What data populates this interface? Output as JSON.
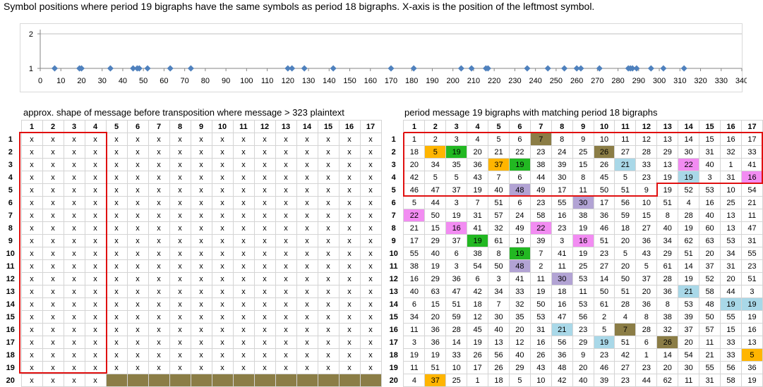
{
  "title": "Symbol positions where period 19 bigraphs have the same symbols as period 18 bigraphs. X-axis is the position of the leftmost symbol.",
  "chart_data": {
    "type": "scatter",
    "title": "",
    "xlim": [
      0,
      340
    ],
    "ylim": [
      1,
      2
    ],
    "xticks": [
      "0",
      "10",
      "20",
      "30",
      "40",
      "50",
      "60",
      "70",
      "80",
      "90",
      "100",
      "110",
      "120",
      "130",
      "140",
      "150",
      "160",
      "170",
      "180",
      "190",
      "200",
      "210",
      "220",
      "230",
      "240",
      "250",
      "260",
      "270",
      "280",
      "290",
      "300",
      "310",
      "320",
      "330",
      "340"
    ],
    "yticks": [
      "1",
      "2"
    ],
    "marker_color": "#4f81bd",
    "x": [
      7,
      19,
      20,
      34,
      45,
      47,
      48,
      52,
      63,
      73,
      120,
      122,
      128,
      142,
      170,
      181,
      204,
      209,
      216,
      217,
      236,
      246,
      254,
      260,
      262,
      271,
      285,
      286,
      287,
      289,
      296,
      302,
      312
    ],
    "y": [
      1,
      1,
      1,
      1,
      1,
      1,
      1,
      1,
      1,
      1,
      1,
      1,
      1,
      1,
      1,
      1,
      1,
      1,
      1,
      1,
      1,
      1,
      1,
      1,
      1,
      1,
      1,
      1,
      1,
      1,
      1,
      1,
      1
    ]
  },
  "left_table": {
    "caption": "approx. shape of message before transposition where message > 323 plaintext",
    "col_headers": [
      "1",
      "2",
      "3",
      "4",
      "5",
      "6",
      "7",
      "8",
      "9",
      "10",
      "11",
      "12",
      "13",
      "14",
      "15",
      "16",
      "17"
    ],
    "row_headers": [
      "1",
      "2",
      "3",
      "4",
      "5",
      "6",
      "7",
      "8",
      "9",
      "10",
      "11",
      "12",
      "13",
      "14",
      "15",
      "16",
      "17",
      "18",
      "19",
      "20"
    ],
    "cell_symbol": "x",
    "last_row_filled_cols": 4,
    "empty_fill_color": "#8b7d46"
  },
  "right_table": {
    "caption": "period message 19 bigraphs with matching period 18 bigraphs",
    "col_headers": [
      "1",
      "2",
      "3",
      "4",
      "5",
      "6",
      "7",
      "8",
      "9",
      "10",
      "11",
      "12",
      "13",
      "14",
      "15",
      "16",
      "17"
    ],
    "row_headers": [
      "1",
      "2",
      "3",
      "4",
      "5",
      "6",
      "7",
      "8",
      "9",
      "10",
      "11",
      "12",
      "13",
      "14",
      "15",
      "16",
      "17",
      "18",
      "19",
      "20"
    ],
    "rows": [
      [
        "1",
        "2",
        "3",
        "4",
        "5",
        "6",
        "7",
        "8",
        "9",
        "10",
        "11",
        "12",
        "13",
        "14",
        "15",
        "16",
        "17"
      ],
      [
        "18",
        "5",
        "19",
        "20",
        "21",
        "22",
        "23",
        "24",
        "25",
        "26",
        "27",
        "28",
        "29",
        "30",
        "31",
        "32",
        "33"
      ],
      [
        "20",
        "34",
        "35",
        "36",
        "37",
        "19",
        "38",
        "39",
        "15",
        "26",
        "21",
        "33",
        "13",
        "22",
        "40",
        "1",
        "41"
      ],
      [
        "42",
        "5",
        "5",
        "43",
        "7",
        "6",
        "44",
        "30",
        "8",
        "45",
        "5",
        "23",
        "19",
        "19",
        "3",
        "31",
        "16"
      ],
      [
        "46",
        "47",
        "37",
        "19",
        "40",
        "48",
        "49",
        "17",
        "11",
        "50",
        "51",
        "9",
        "19",
        "52",
        "53",
        "10",
        "54"
      ],
      [
        "5",
        "44",
        "3",
        "7",
        "51",
        "6",
        "23",
        "55",
        "30",
        "17",
        "56",
        "10",
        "51",
        "4",
        "16",
        "25",
        "21"
      ],
      [
        "22",
        "50",
        "19",
        "31",
        "57",
        "24",
        "58",
        "16",
        "38",
        "36",
        "59",
        "15",
        "8",
        "28",
        "40",
        "13",
        "11"
      ],
      [
        "21",
        "15",
        "16",
        "41",
        "32",
        "49",
        "22",
        "23",
        "19",
        "46",
        "18",
        "27",
        "40",
        "19",
        "60",
        "13",
        "47"
      ],
      [
        "17",
        "29",
        "37",
        "19",
        "61",
        "19",
        "39",
        "3",
        "16",
        "51",
        "20",
        "36",
        "34",
        "62",
        "63",
        "53",
        "31"
      ],
      [
        "55",
        "40",
        "6",
        "38",
        "8",
        "19",
        "7",
        "41",
        "19",
        "23",
        "5",
        "43",
        "29",
        "51",
        "20",
        "34",
        "55"
      ],
      [
        "38",
        "19",
        "3",
        "54",
        "50",
        "48",
        "2",
        "11",
        "25",
        "27",
        "20",
        "5",
        "61",
        "14",
        "37",
        "31",
        "23"
      ],
      [
        "16",
        "29",
        "36",
        "6",
        "3",
        "41",
        "11",
        "30",
        "53",
        "14",
        "50",
        "37",
        "28",
        "19",
        "52",
        "20",
        "51"
      ],
      [
        "40",
        "63",
        "47",
        "42",
        "34",
        "33",
        "19",
        "18",
        "11",
        "50",
        "51",
        "20",
        "36",
        "21",
        "58",
        "44",
        "3"
      ],
      [
        "6",
        "15",
        "51",
        "18",
        "7",
        "32",
        "50",
        "16",
        "53",
        "61",
        "28",
        "36",
        "8",
        "53",
        "48",
        "19",
        "19"
      ],
      [
        "34",
        "20",
        "59",
        "12",
        "30",
        "35",
        "53",
        "47",
        "56",
        "2",
        "4",
        "8",
        "38",
        "39",
        "50",
        "55",
        "19"
      ],
      [
        "11",
        "36",
        "28",
        "45",
        "40",
        "20",
        "31",
        "21",
        "23",
        "5",
        "7",
        "28",
        "32",
        "37",
        "57",
        "15",
        "16"
      ],
      [
        "3",
        "36",
        "14",
        "19",
        "13",
        "12",
        "16",
        "56",
        "29",
        "19",
        "51",
        "6",
        "26",
        "20",
        "11",
        "33",
        "13"
      ],
      [
        "19",
        "19",
        "33",
        "26",
        "56",
        "40",
        "26",
        "36",
        "9",
        "23",
        "42",
        "1",
        "14",
        "54",
        "21",
        "33",
        "5"
      ],
      [
        "11",
        "51",
        "10",
        "17",
        "26",
        "29",
        "43",
        "48",
        "20",
        "46",
        "27",
        "23",
        "20",
        "30",
        "55",
        "56",
        "36"
      ],
      [
        "4",
        "37",
        "25",
        "1",
        "18",
        "5",
        "10",
        "42",
        "40",
        "39",
        "23",
        "44",
        "62",
        "11",
        "31",
        "58",
        "19"
      ]
    ],
    "highlight_colors": {
      "olive": "#8b7d46",
      "orange": "#ffb500",
      "green": "#22b822",
      "blue": "#a9d8e8",
      "pink": "#f28cf2",
      "lavender": "#b2a3d4"
    },
    "highlights": [
      {
        "row": 1,
        "col": 7,
        "color": "olive"
      },
      {
        "row": 2,
        "col": 2,
        "color": "orange"
      },
      {
        "row": 2,
        "col": 3,
        "color": "green"
      },
      {
        "row": 2,
        "col": 10,
        "color": "olive"
      },
      {
        "row": 3,
        "col": 5,
        "color": "orange"
      },
      {
        "row": 3,
        "col": 6,
        "color": "green"
      },
      {
        "row": 3,
        "col": 11,
        "color": "blue"
      },
      {
        "row": 3,
        "col": 14,
        "color": "pink"
      },
      {
        "row": 4,
        "col": 14,
        "color": "blue"
      },
      {
        "row": 4,
        "col": 17,
        "color": "pink"
      },
      {
        "row": 5,
        "col": 6,
        "color": "lavender"
      },
      {
        "row": 6,
        "col": 9,
        "color": "lavender"
      },
      {
        "row": 7,
        "col": 1,
        "color": "pink"
      },
      {
        "row": 8,
        "col": 3,
        "color": "pink"
      },
      {
        "row": 8,
        "col": 7,
        "color": "pink"
      },
      {
        "row": 9,
        "col": 4,
        "color": "green"
      },
      {
        "row": 9,
        "col": 9,
        "color": "pink"
      },
      {
        "row": 10,
        "col": 6,
        "color": "green"
      },
      {
        "row": 11,
        "col": 6,
        "color": "lavender"
      },
      {
        "row": 12,
        "col": 8,
        "color": "lavender"
      },
      {
        "row": 13,
        "col": 14,
        "color": "blue"
      },
      {
        "row": 14,
        "col": 16,
        "color": "blue"
      },
      {
        "row": 14,
        "col": 17,
        "color": "blue"
      },
      {
        "row": 16,
        "col": 8,
        "color": "blue"
      },
      {
        "row": 16,
        "col": 11,
        "color": "olive"
      },
      {
        "row": 17,
        "col": 10,
        "color": "blue"
      },
      {
        "row": 17,
        "col": 13,
        "color": "olive"
      },
      {
        "row": 18,
        "col": 17,
        "color": "orange"
      },
      {
        "row": 20,
        "col": 2,
        "color": "orange"
      }
    ]
  }
}
